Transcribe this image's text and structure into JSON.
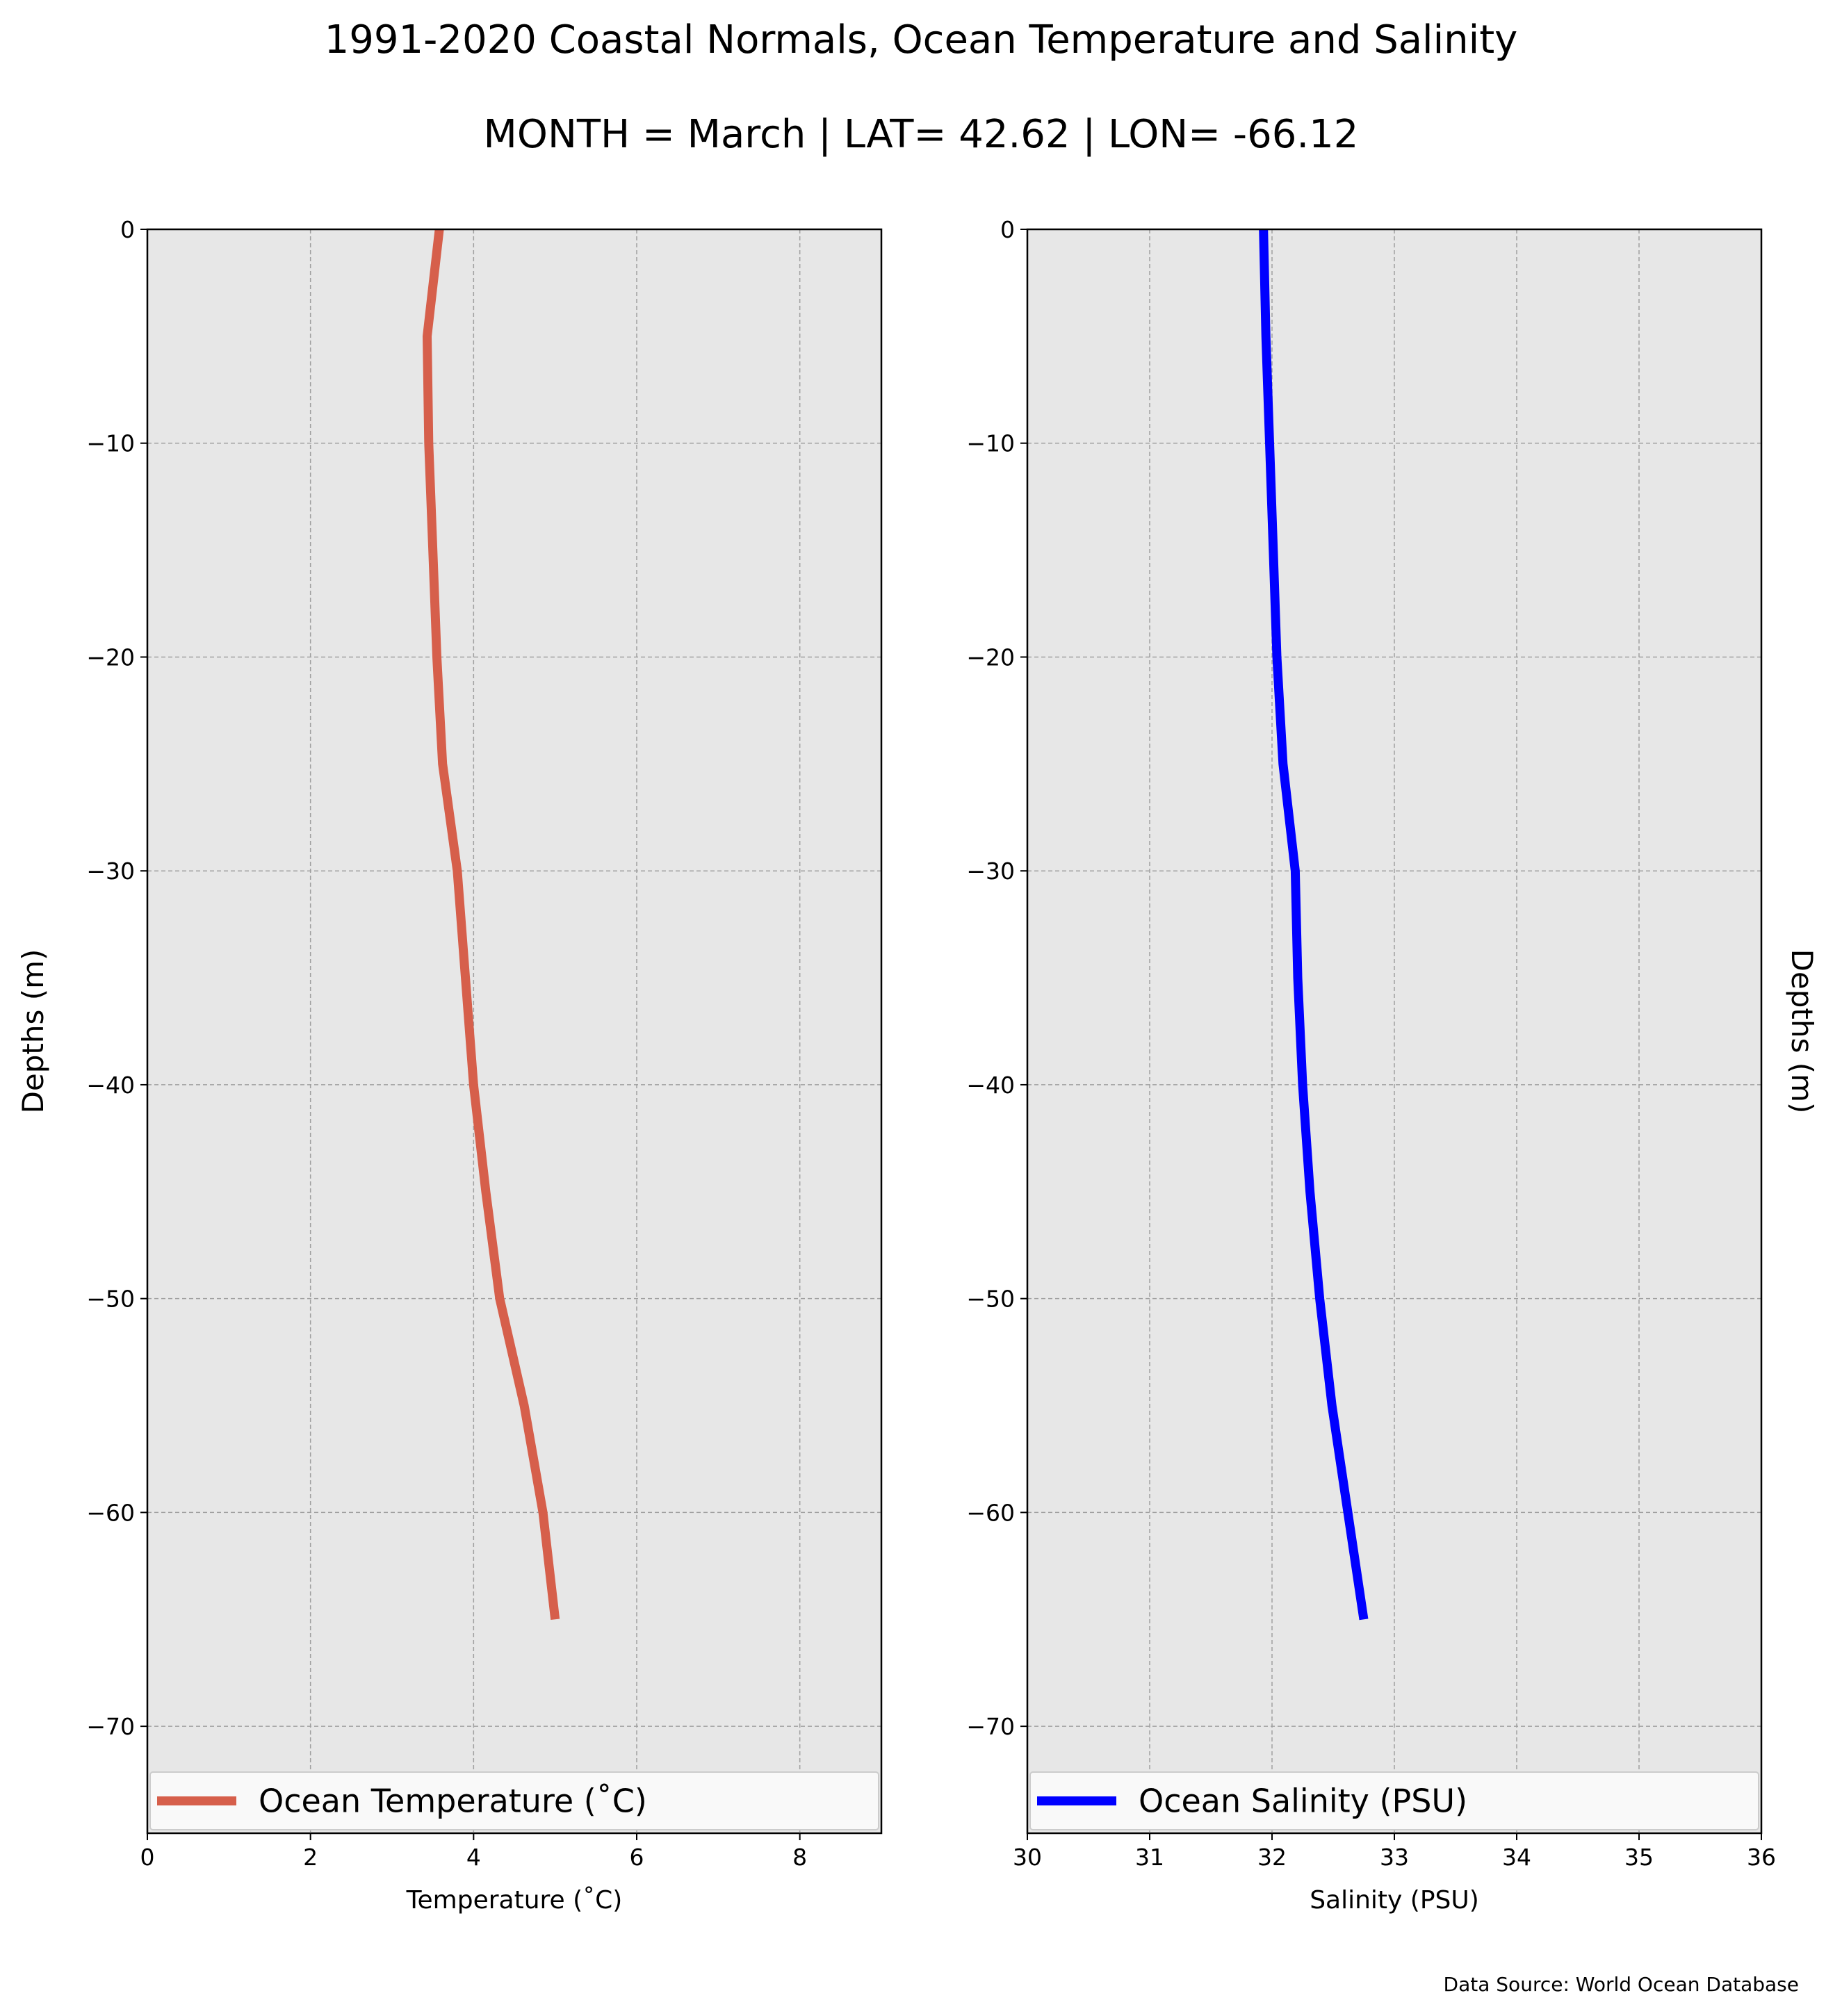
{
  "title": "1991-2020 Coastal Normals, Ocean Temperature and Salinity",
  "subtitle": "MONTH = March | LAT= 42.62 | LON= -66.12",
  "source_note": "Data Source: World Ocean Database",
  "colors": {
    "temperature": "#d65f4b",
    "salinity": "#0000ff",
    "plot_background": "#e7e7e7",
    "grid": "#a0a0a0"
  },
  "chart_data": [
    {
      "type": "line",
      "xlabel": "Temperature ($^\\circ$C)",
      "xlabel_display": "Temperature (˚C)",
      "ylabel": "Depths (m)",
      "xlim": [
        0,
        9
      ],
      "ylim": [
        -75,
        0
      ],
      "xticks": [
        0,
        2,
        4,
        6,
        8
      ],
      "xtick_labels": [
        "0",
        "2",
        "4",
        "6",
        "8"
      ],
      "yticks": [
        0,
        -10,
        -20,
        -30,
        -40,
        -50,
        -60,
        -70
      ],
      "ytick_labels": [
        "0",
        "−10",
        "−20",
        "−30",
        "−40",
        "−50",
        "−60",
        "−70"
      ],
      "grid": true,
      "legend_position": "bottom",
      "series": [
        {
          "name": "Ocean Temperature (˚C)",
          "x": [
            3.58,
            3.43,
            3.45,
            3.5,
            3.55,
            3.62,
            3.8,
            3.9,
            4.0,
            4.15,
            4.32,
            4.62,
            4.85,
            5.0
          ],
          "y": [
            0,
            -5,
            -10,
            -15,
            -20,
            -25,
            -30,
            -35,
            -40,
            -45,
            -50,
            -55,
            -60,
            -65
          ]
        }
      ]
    },
    {
      "type": "line",
      "xlabel": "Salinity (PSU)",
      "ylabel": "Depths (m)",
      "xlim": [
        30,
        36
      ],
      "ylim": [
        -75,
        0
      ],
      "xticks": [
        30,
        31,
        32,
        33,
        34,
        35,
        36
      ],
      "xtick_labels": [
        "30",
        "31",
        "32",
        "33",
        "34",
        "35",
        "36"
      ],
      "yticks": [
        0,
        -10,
        -20,
        -30,
        -40,
        -50,
        -60,
        -70
      ],
      "ytick_labels": [
        "0",
        "−10",
        "−20",
        "−30",
        "−40",
        "−50",
        "−60",
        "−70"
      ],
      "grid": true,
      "legend_position": "bottom",
      "series": [
        {
          "name": "Ocean Salinity (PSU)",
          "x": [
            31.93,
            31.95,
            31.98,
            32.01,
            32.04,
            32.09,
            32.19,
            32.21,
            32.25,
            32.31,
            32.39,
            32.49,
            32.62,
            32.75
          ],
          "y": [
            0,
            -5,
            -10,
            -15,
            -20,
            -25,
            -30,
            -35,
            -40,
            -45,
            -50,
            -55,
            -60,
            -65
          ]
        }
      ]
    }
  ]
}
